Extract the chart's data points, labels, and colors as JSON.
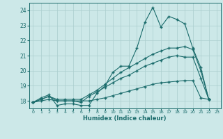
{
  "xlabel": "Humidex (Indice chaleur)",
  "xlim": [
    -0.5,
    23.5
  ],
  "ylim": [
    17.5,
    24.5
  ],
  "yticks": [
    18,
    19,
    20,
    21,
    22,
    23,
    24
  ],
  "xticks": [
    0,
    1,
    2,
    3,
    4,
    5,
    6,
    7,
    8,
    9,
    10,
    11,
    12,
    13,
    14,
    15,
    16,
    17,
    18,
    19,
    20,
    21,
    22,
    23
  ],
  "bg_color": "#cce8e8",
  "line_color": "#1a6b6b",
  "grid_color": "#aacece",
  "lines": [
    {
      "x": [
        0,
        1,
        2,
        3,
        4,
        5,
        6,
        7,
        8,
        9,
        10,
        11,
        12,
        13,
        14,
        15,
        16,
        17,
        18,
        19,
        20,
        21,
        22
      ],
      "y": [
        17.9,
        18.2,
        18.4,
        17.7,
        17.8,
        17.8,
        17.7,
        17.7,
        18.5,
        19.0,
        19.9,
        20.3,
        20.3,
        21.5,
        23.2,
        24.2,
        22.9,
        23.6,
        23.4,
        23.1,
        21.5,
        20.2,
        18.1
      ]
    },
    {
      "x": [
        0,
        1,
        2,
        3,
        4,
        5,
        6,
        7,
        8,
        9,
        10,
        11,
        12,
        13,
        14,
        15,
        16,
        17,
        18,
        19,
        20,
        21,
        22
      ],
      "y": [
        17.9,
        18.1,
        18.3,
        18.1,
        18.1,
        18.1,
        18.1,
        18.4,
        18.7,
        19.1,
        19.5,
        19.9,
        20.2,
        20.5,
        20.8,
        21.1,
        21.3,
        21.5,
        21.5,
        21.6,
        21.4,
        20.0,
        18.1
      ]
    },
    {
      "x": [
        0,
        1,
        2,
        3,
        4,
        5,
        6,
        7,
        8,
        9,
        10,
        11,
        12,
        13,
        14,
        15,
        16,
        17,
        18,
        19,
        20,
        21,
        22
      ],
      "y": [
        17.9,
        18.0,
        18.1,
        18.0,
        18.0,
        18.0,
        18.0,
        18.0,
        18.1,
        18.2,
        18.35,
        18.5,
        18.65,
        18.8,
        18.95,
        19.1,
        19.2,
        19.25,
        19.3,
        19.35,
        19.35,
        18.2,
        18.1
      ]
    },
    {
      "x": [
        0,
        1,
        2,
        3,
        4,
        5,
        6,
        7,
        8,
        9,
        10,
        11,
        12,
        13,
        14,
        15,
        16,
        17,
        18,
        19,
        20,
        21,
        22
      ],
      "y": [
        17.9,
        18.1,
        18.3,
        18.0,
        18.0,
        18.0,
        17.9,
        18.3,
        18.6,
        18.9,
        19.2,
        19.5,
        19.7,
        20.0,
        20.3,
        20.5,
        20.7,
        20.9,
        21.0,
        20.9,
        20.9,
        19.5,
        18.1
      ]
    }
  ]
}
